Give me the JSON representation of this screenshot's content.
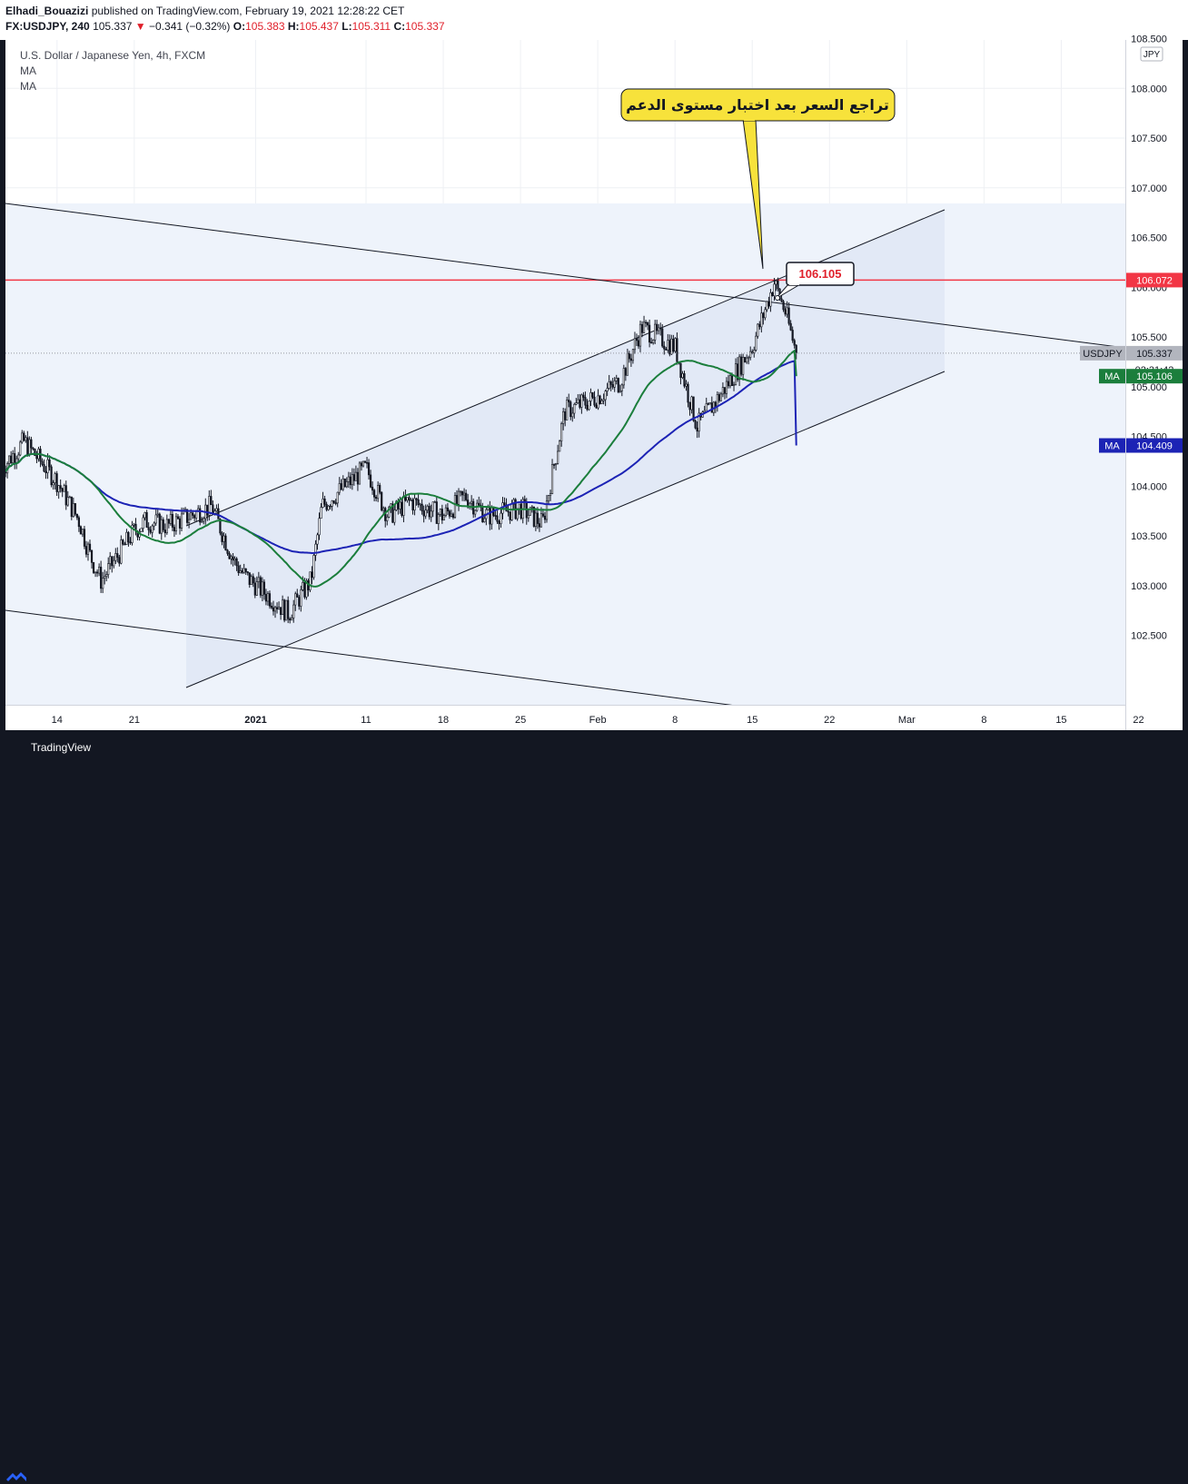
{
  "header": {
    "publisher": "Elhadi_Bouazizi",
    "published_text": "published on TradingView.com, February 19, 2021 12:28:22 CET",
    "symbol": "FX:USDJPY, 240",
    "last": "105.337",
    "change_arrow": "▼",
    "change": "−0.341 (−0.32%)",
    "o_label": "O:",
    "o_value": "105.383",
    "h_label": "H:",
    "h_value": "105.437",
    "l_label": "L:",
    "l_value": "105.311",
    "c_label": "C:",
    "c_value": "105.337"
  },
  "legend": {
    "title": "U.S. Dollar / Japanese Yen, 4h, FXCM",
    "ma1": "MA",
    "ma2": "MA"
  },
  "annotation": {
    "callout_text": "تراجع السعر بعد اختبار مستوى الدعم",
    "price_label": "106.105"
  },
  "axis": {
    "currency": "JPY",
    "price_ticks": [
      "108.500",
      "108.000",
      "107.500",
      "107.000",
      "106.500",
      "106.000",
      "105.500",
      "105.000",
      "104.500",
      "104.000",
      "103.500",
      "103.000",
      "102.500"
    ],
    "date_ticks": [
      "14",
      "21",
      "2021",
      "11",
      "18",
      "25",
      "Feb",
      "8",
      "15",
      "22",
      "Mar",
      "8",
      "15",
      "22"
    ]
  },
  "price_labels": {
    "resistance": "106.072",
    "symbol": "USDJPY",
    "last": "105.337",
    "countdown": "02:31:42",
    "ma_label": "MA",
    "ma1_value": "105.106",
    "ma2_value": "104.409"
  },
  "colors": {
    "resistance": "#f23645",
    "ma_green": "#1b7e3c",
    "ma_blue": "#1c23b5",
    "callout": "#f7e23b",
    "channel_fill": "#dfe6f5"
  },
  "footer": {
    "brand": "TradingView"
  },
  "chart_data": {
    "type": "candlestick",
    "symbol": "FX:USDJPY",
    "timeframe": "4h",
    "ylim": [
      102.1,
      108.7
    ],
    "resistance_level": 106.072,
    "last_price": 105.337,
    "ma_values": [
      105.106,
      104.409
    ],
    "close_path": [
      {
        "x": "2020-12-09",
        "y": 104.18
      },
      {
        "x": "2020-12-11",
        "y": 104.45
      },
      {
        "x": "2020-12-14",
        "y": 104.05
      },
      {
        "x": "2020-12-16",
        "y": 103.65
      },
      {
        "x": "2020-12-17",
        "y": 103.3
      },
      {
        "x": "2020-12-18",
        "y": 103.05
      },
      {
        "x": "2020-12-21",
        "y": 103.55
      },
      {
        "x": "2020-12-22",
        "y": 103.65
      },
      {
        "x": "2020-12-24",
        "y": 103.6
      },
      {
        "x": "2020-12-28",
        "y": 103.8
      },
      {
        "x": "2020-12-30",
        "y": 103.25
      },
      {
        "x": "2020-12-31",
        "y": 103.1
      },
      {
        "x": "2021-01-04",
        "y": 102.72
      },
      {
        "x": "2021-01-06",
        "y": 103.05
      },
      {
        "x": "2021-01-07",
        "y": 103.8
      },
      {
        "x": "2021-01-11",
        "y": 104.18
      },
      {
        "x": "2021-01-13",
        "y": 103.7
      },
      {
        "x": "2021-01-15",
        "y": 103.85
      },
      {
        "x": "2021-01-18",
        "y": 103.7
      },
      {
        "x": "2021-01-20",
        "y": 103.9
      },
      {
        "x": "2021-01-22",
        "y": 103.7
      },
      {
        "x": "2021-01-25",
        "y": 103.78
      },
      {
        "x": "2021-01-27",
        "y": 103.62
      },
      {
        "x": "2021-01-28",
        "y": 104.2
      },
      {
        "x": "2021-01-29",
        "y": 104.75
      },
      {
        "x": "2021-02-01",
        "y": 104.9
      },
      {
        "x": "2021-02-03",
        "y": 105.05
      },
      {
        "x": "2021-02-05",
        "y": 105.6
      },
      {
        "x": "2021-02-08",
        "y": 105.4
      },
      {
        "x": "2021-02-10",
        "y": 104.6
      },
      {
        "x": "2021-02-12",
        "y": 104.9
      },
      {
        "x": "2021-02-15",
        "y": 105.4
      },
      {
        "x": "2021-02-17",
        "y": 106.05
      },
      {
        "x": "2021-02-18",
        "y": 105.75
      },
      {
        "x": "2021-02-19",
        "y": 105.337
      }
    ]
  }
}
